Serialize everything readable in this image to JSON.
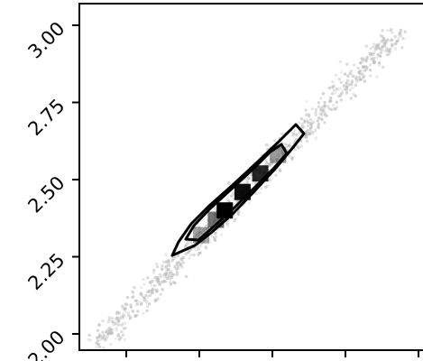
{
  "chart_data": {
    "type": "scatter",
    "title": "",
    "xlabel": "",
    "ylabel": "",
    "ylim": [
      1.97,
      3.09
    ],
    "y_ticks": [
      "2.00",
      "2.25",
      "2.50",
      "2.75",
      "3.00"
    ],
    "y_tick_values": [
      2.0,
      2.25,
      2.5,
      2.75,
      3.0
    ],
    "x_tick_count": 5,
    "grid": false,
    "point_color": "#bdbdbd",
    "contour_color": "#000000",
    "hist_color": "#000000",
    "hist_bins": [
      {
        "y": 2.32,
        "density": 0.35
      },
      {
        "y": 2.37,
        "density": 0.55
      },
      {
        "y": 2.4,
        "density": 1.0
      },
      {
        "y": 2.46,
        "density": 0.95
      },
      {
        "y": 2.52,
        "density": 0.85
      },
      {
        "y": 2.58,
        "density": 0.4
      }
    ]
  }
}
